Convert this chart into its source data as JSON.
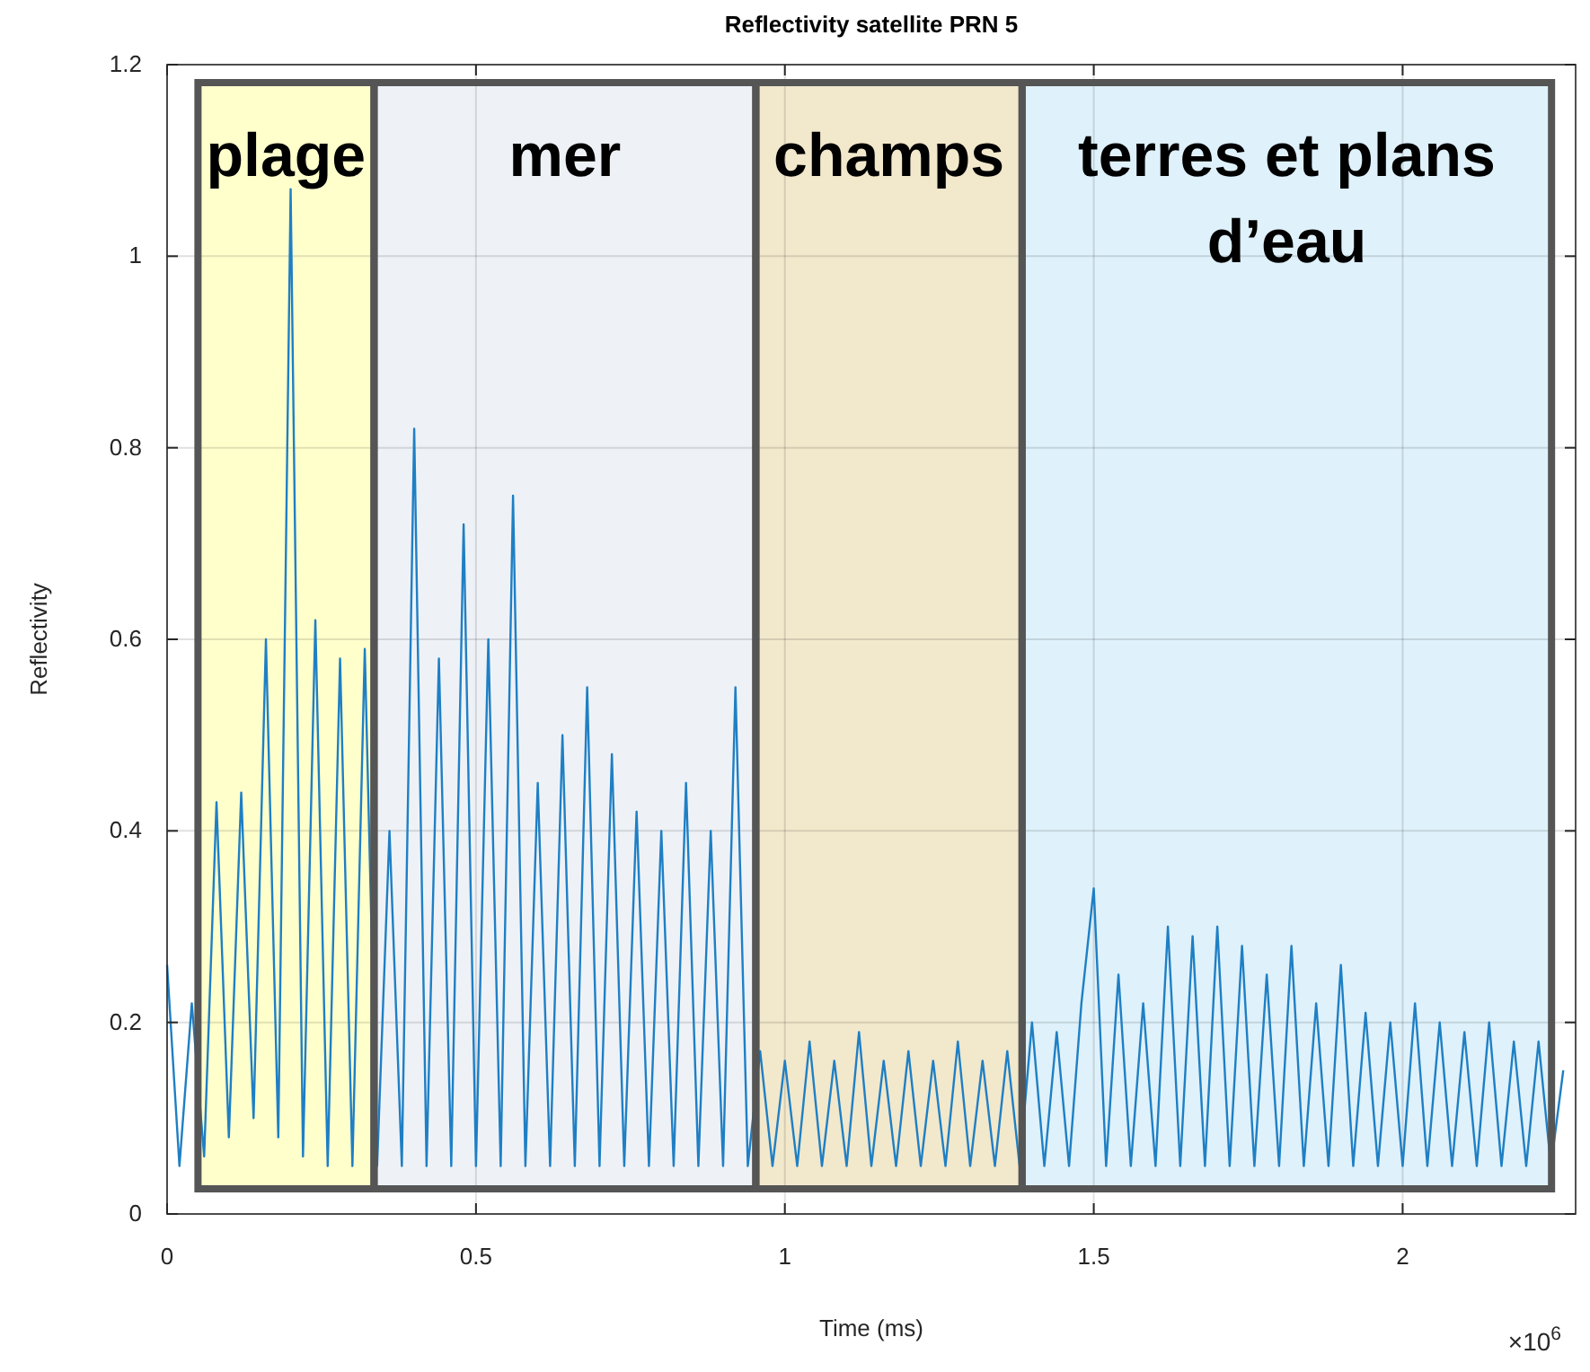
{
  "chart_data": {
    "type": "line",
    "title": "Reflectivity satellite PRN 5",
    "xlabel": "Time (ms)",
    "ylabel": "Reflectivity",
    "xlim": [
      0,
      2.28
    ],
    "xticks": [
      0,
      0.5,
      1,
      1.5,
      2
    ],
    "ylim": [
      0,
      1.2
    ],
    "yticks": [
      0,
      0.2,
      0.4,
      0.6,
      0.8,
      1,
      1.2
    ],
    "grid": true,
    "annotations": [
      "×10$^{6}$"
    ],
    "bands": [
      {
        "axis": "x",
        "from": 0.05,
        "to": 0.335,
        "label": "plage",
        "color": "#ffffcc"
      },
      {
        "axis": "x",
        "from": 0.335,
        "to": 0.953,
        "label": "mer",
        "color": "#eef2f7"
      },
      {
        "axis": "x",
        "from": 0.953,
        "to": 1.384,
        "label": "champs",
        "color": "#f2e8cc"
      },
      {
        "axis": "x",
        "from": 1.384,
        "to": 2.241,
        "label": "terres et plans d’eau",
        "color": "#dff1fa"
      }
    ],
    "series": [
      {
        "color": "#1f7fc4",
        "x": [
          0,
          0.02,
          0.04,
          0.06,
          0.08,
          0.1,
          0.12,
          0.14,
          0.16,
          0.18,
          0.2,
          0.22,
          0.24,
          0.26,
          0.28,
          0.3,
          0.32,
          0.34,
          0.36,
          0.38,
          0.4,
          0.42,
          0.44,
          0.46,
          0.48,
          0.5,
          0.52,
          0.54,
          0.56,
          0.58,
          0.6,
          0.62,
          0.64,
          0.66,
          0.68,
          0.7,
          0.72,
          0.74,
          0.76,
          0.78,
          0.8,
          0.82,
          0.84,
          0.86,
          0.88,
          0.9,
          0.92,
          0.94,
          0.96,
          0.98,
          1,
          1.02,
          1.04,
          1.06,
          1.08,
          1.1,
          1.12,
          1.14,
          1.16,
          1.18,
          1.2,
          1.22,
          1.24,
          1.26,
          1.28,
          1.3,
          1.32,
          1.34,
          1.36,
          1.38,
          1.4,
          1.42,
          1.44,
          1.46,
          1.48,
          1.5,
          1.52,
          1.54,
          1.56,
          1.58,
          1.6,
          1.62,
          1.64,
          1.66,
          1.68,
          1.7,
          1.72,
          1.74,
          1.76,
          1.78,
          1.8,
          1.82,
          1.84,
          1.86,
          1.88,
          1.9,
          1.92,
          1.94,
          1.96,
          1.98,
          2,
          2.02,
          2.04,
          2.06,
          2.08,
          2.1,
          2.12,
          2.14,
          2.16,
          2.18,
          2.2,
          2.22,
          2.24,
          2.26
        ],
        "values": [
          0.26,
          0.05,
          0.22,
          0.06,
          0.43,
          0.08,
          0.44,
          0.1,
          0.6,
          0.08,
          1.07,
          0.06,
          0.62,
          0.05,
          0.58,
          0.05,
          0.59,
          0.05,
          0.4,
          0.05,
          0.82,
          0.05,
          0.58,
          0.05,
          0.72,
          0.05,
          0.6,
          0.05,
          0.75,
          0.05,
          0.45,
          0.05,
          0.5,
          0.05,
          0.55,
          0.05,
          0.48,
          0.05,
          0.42,
          0.05,
          0.4,
          0.05,
          0.45,
          0.05,
          0.4,
          0.05,
          0.55,
          0.05,
          0.17,
          0.05,
          0.16,
          0.05,
          0.18,
          0.05,
          0.16,
          0.05,
          0.19,
          0.05,
          0.16,
          0.05,
          0.17,
          0.05,
          0.16,
          0.05,
          0.18,
          0.05,
          0.16,
          0.05,
          0.17,
          0.05,
          0.2,
          0.05,
          0.19,
          0.05,
          0.22,
          0.34,
          0.05,
          0.25,
          0.05,
          0.22,
          0.05,
          0.3,
          0.05,
          0.29,
          0.05,
          0.3,
          0.05,
          0.28,
          0.05,
          0.25,
          0.05,
          0.28,
          0.05,
          0.22,
          0.05,
          0.26,
          0.05,
          0.21,
          0.05,
          0.2,
          0.05,
          0.22,
          0.05,
          0.2,
          0.05,
          0.19,
          0.05,
          0.2,
          0.05,
          0.18,
          0.05,
          0.18,
          0.05,
          0.15
        ]
      }
    ]
  }
}
